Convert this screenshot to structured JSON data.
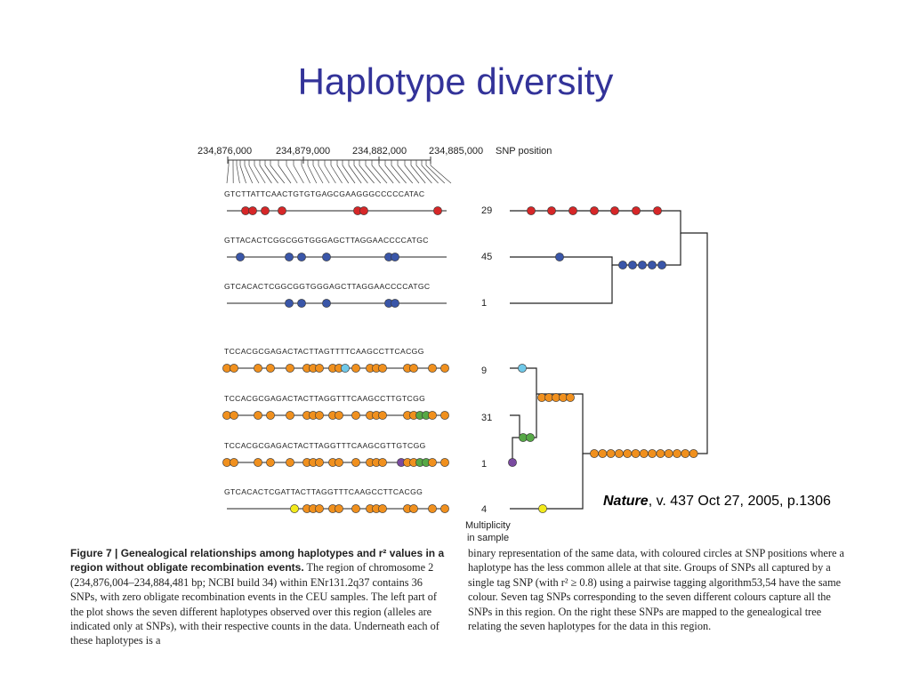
{
  "slide": {
    "title": "Haplotype diversity"
  },
  "figure": {
    "axis": {
      "positions": [
        "234,876,000",
        "234,879,000",
        "234,882,000",
        "234,885,000"
      ],
      "axis_title": "SNP position"
    },
    "haplotypes": [
      {
        "sequence": "GTCTTATTCAACTGTGTGAGCGAAGGGCCCCCATAC",
        "count": "29",
        "color": "#d62728"
      },
      {
        "sequence": "GTTACACTCGGCGGTGGGAGCTTAGGAACCCCATGC",
        "count": "45",
        "color": "#3a56a8"
      },
      {
        "sequence": "GTCACACTCGGCGGTGGGAGCTTAGGAACCCCATGC",
        "count": "1",
        "color": "#3a56a8"
      },
      {
        "sequence": "TCCACGCGAGACTACTTAGTTTTCAAGCCTTCACGG",
        "count": "9",
        "color": "#f0901e"
      },
      {
        "sequence": "TCCACGCGAGACTACTTAGGTTTCAAGCCTTGTCGG",
        "count": "31",
        "color": "#f0901e"
      },
      {
        "sequence": "TCCACGCGAGACTACTTAGGTTTCAAGCGTTGTCGG",
        "count": "1",
        "color": "#f0901e"
      },
      {
        "sequence": "GTCACACTCGATTACTTAGGTTTCAAGCCTTCACGG",
        "count": "4",
        "color": "#f0901e"
      }
    ],
    "multiplicity_label": [
      "Multiplicity",
      "in sample"
    ],
    "colors": {
      "red": "#d62728",
      "blue": "#3a56a8",
      "orange": "#f0901e",
      "light_blue": "#6fc8e8",
      "green": "#56a846",
      "purple": "#7a4aa0",
      "yellow": "#f2ea1c"
    }
  },
  "citation": {
    "journal": "Nature",
    "rest": ", v. 437 Oct 27, 2005, p.1306"
  },
  "caption": {
    "label": "Figure 7 | Genealogical relationships among haplotypes and r² values in a region without obligate recombination events.",
    "left_text": " The region of chromosome 2 (234,876,004–234,884,481 bp; NCBI build 34) within ENr131.2q37 contains 36 SNPs, with zero obligate recombination events in the CEU samples. The left part of the plot shows the seven different haplotypes observed over this region (alleles are indicated only at SNPs), with their respective counts in the data. Underneath each of these haplotypes is a",
    "right_text": "binary representation of the same data, with coloured circles at SNP positions where a haplotype has the less common allele at that site. Groups of SNPs all captured by a single tag SNP (with r² ≥ 0.8) using a pairwise tagging algorithm53,54 have the same colour. Seven tag SNPs corresponding to the seven different colours capture all the SNPs in this region. On the right these SNPs are mapped to the genealogical tree relating the seven haplotypes for the data in this region."
  }
}
